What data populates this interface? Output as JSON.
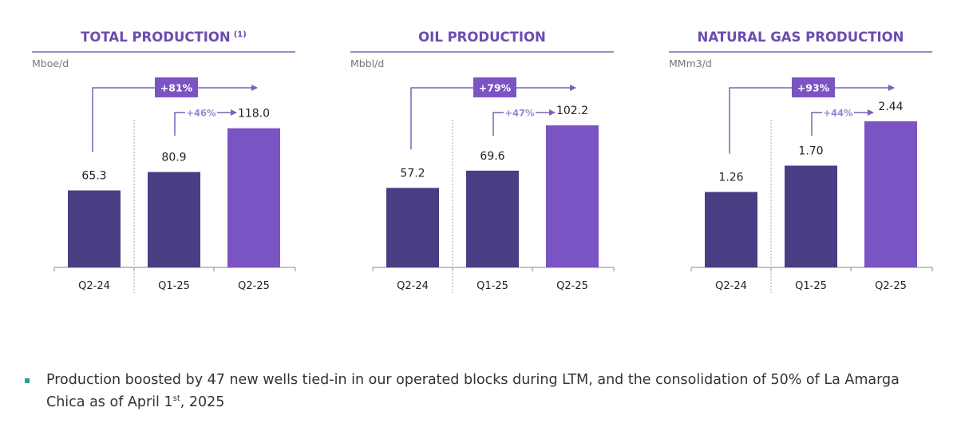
{
  "chart_data": [
    {
      "type": "bar",
      "title": "TOTAL PRODUCTION",
      "title_note": "(1)",
      "ylabel": "Mboe/d",
      "categories": [
        "Q2-24",
        "Q1-25",
        "Q2-25"
      ],
      "values": [
        65.3,
        80.9,
        118.0
      ],
      "value_labels": [
        "65.3",
        "80.9",
        "118.0"
      ],
      "ylim": [
        0,
        132
      ],
      "yoy_change": "+81%",
      "qoq_change": "+46%"
    },
    {
      "type": "bar",
      "title": "OIL PRODUCTION",
      "title_note": "",
      "ylabel": "Mbbl/d",
      "categories": [
        "Q2-24",
        "Q1-25",
        "Q2-25"
      ],
      "values": [
        57.2,
        69.6,
        102.2
      ],
      "value_labels": [
        "57.2",
        "69.6",
        "102.2"
      ],
      "ylim": [
        0,
        112
      ],
      "yoy_change": "+79%",
      "qoq_change": "+47%"
    },
    {
      "type": "bar",
      "title": "NATURAL GAS PRODUCTION",
      "title_note": "",
      "ylabel": "MMm3/d",
      "categories": [
        "Q2-24",
        "Q1-25",
        "Q2-25"
      ],
      "values": [
        1.26,
        1.7,
        2.44
      ],
      "value_labels": [
        "1.26",
        "1.70",
        "2.44"
      ],
      "ylim": [
        0,
        2.6
      ],
      "yoy_change": "+93%",
      "qoq_change": "+44%"
    }
  ],
  "colors": {
    "past": "#4a3d84",
    "current": "#7b54c4",
    "title": "#6a4db0",
    "arrow": "#7b62b8",
    "qoq_text": "#9b86d0",
    "bullet": "#2a9d8f"
  },
  "footer": {
    "text": "Production boosted by 47 new wells tied-in in our operated blocks during LTM, and the consolidation of 50% of La Amarga Chica as of April 1",
    "superscript": "st",
    "suffix": ", 2025"
  }
}
